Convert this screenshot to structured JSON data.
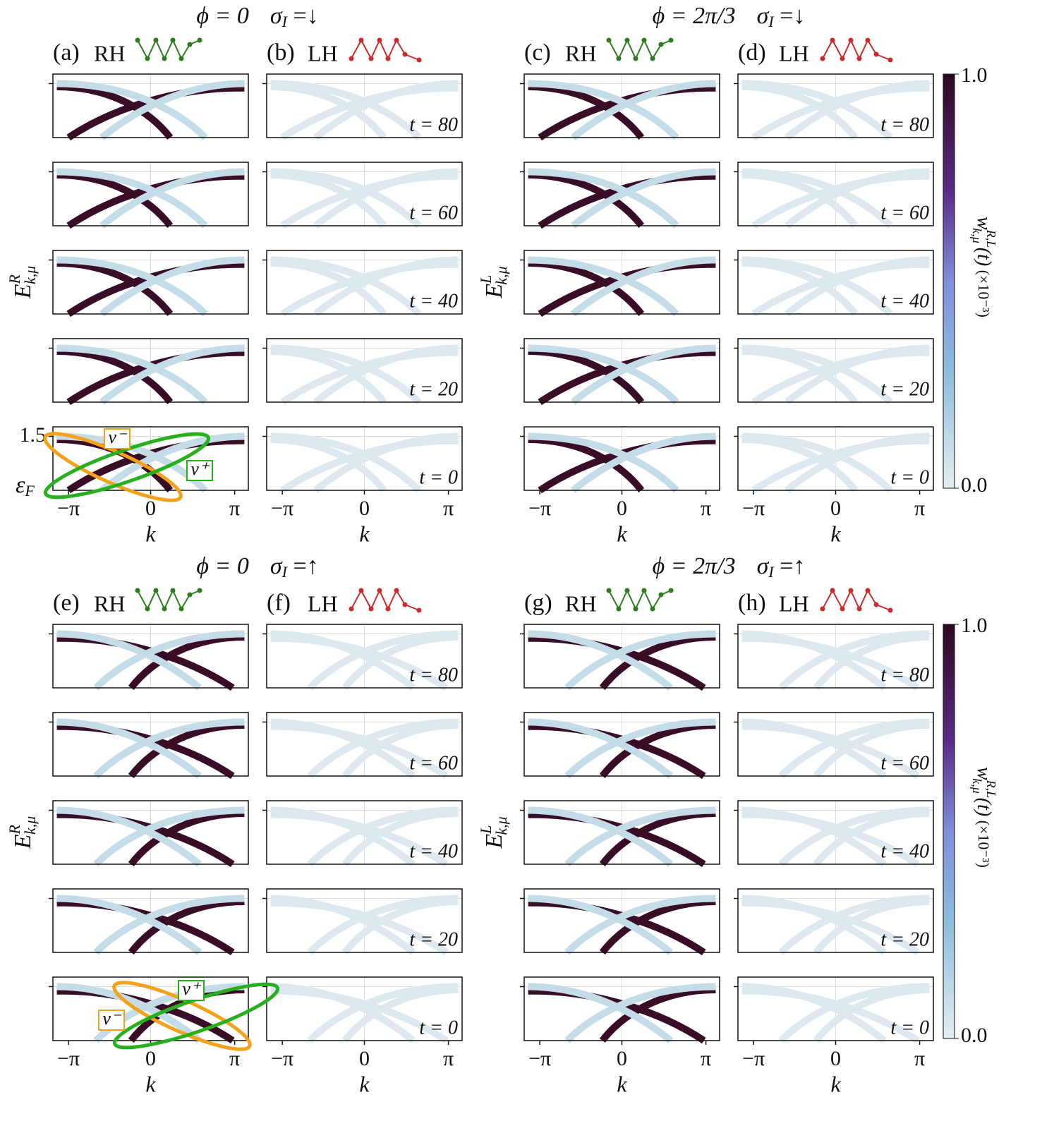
{
  "quadrants": [
    {
      "phi": "ϕ = 0",
      "sigma": "σ",
      "sigma_sub": "I",
      "spin": " =↓",
      "panels": [
        {
          "label": "(a)",
          "hand": "RH"
        },
        {
          "label": "(b)",
          "hand": "LH"
        }
      ],
      "y_label": {
        "main": "E",
        "sup": "R",
        "sub": "k,μ"
      }
    },
    {
      "phi": "ϕ = 2π/3",
      "sigma": "σ",
      "sigma_sub": "I",
      "spin": " =↓",
      "panels": [
        {
          "label": "(c)",
          "hand": "RH"
        },
        {
          "label": "(d)",
          "hand": "LH"
        }
      ],
      "y_label": {
        "main": "E",
        "sup": "L",
        "sub": "k,μ"
      }
    },
    {
      "phi": "ϕ = 0",
      "sigma": "σ",
      "sigma_sub": "I",
      "spin": " =↑",
      "panels": [
        {
          "label": "(e)",
          "hand": "RH"
        },
        {
          "label": "(f)",
          "hand": "LH"
        }
      ],
      "y_label": {
        "main": "E",
        "sup": "R",
        "sub": "k,μ"
      }
    },
    {
      "phi": "ϕ = 2π/3",
      "sigma": "σ",
      "sigma_sub": "I",
      "spin": " =↑",
      "panels": [
        {
          "label": "(g)",
          "hand": "RH"
        },
        {
          "label": "(h)",
          "hand": "LH"
        }
      ],
      "y_label": {
        "main": "E",
        "sup": "L",
        "sub": "k,μ"
      }
    }
  ],
  "time_labels": [
    "t = 80",
    "t = 60",
    "t = 40",
    "t = 20",
    "t = 0"
  ],
  "x_ticks": [
    "−π",
    "0",
    "π"
  ],
  "x_label": "k",
  "y_tick_top": "1.5",
  "fermi": {
    "main": "ε",
    "sub": "F"
  },
  "colorbar": {
    "max": "1.0",
    "min": "0.0",
    "main": "w",
    "sup": "R,L",
    "sub": "k,μ",
    "arg": "(t)",
    "scale": "  (×10⁻³)"
  },
  "annotations": {
    "v_minus": "v⁻",
    "v_plus": "v⁺"
  }
}
